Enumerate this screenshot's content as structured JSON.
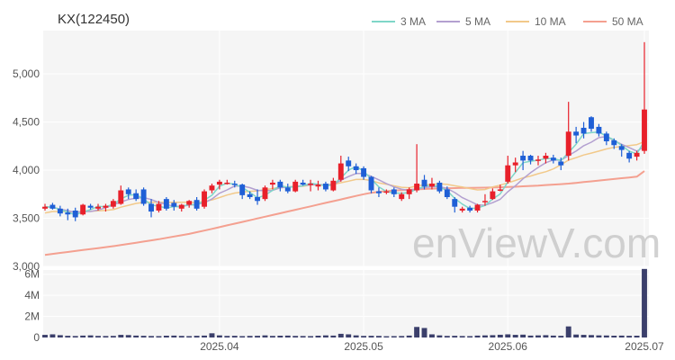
{
  "chart_data": {
    "type": "candlestick",
    "title": "KX(122450)",
    "watermark": "enViewV.com",
    "x_ticks": [
      "2025.04",
      "2025.05",
      "2025.06",
      "2025.07"
    ],
    "price_axis": {
      "ticks": [
        3000,
        3500,
        4000,
        4500,
        5000
      ],
      "tick_labels": [
        "3,000",
        "3,500",
        "4,000",
        "4,500",
        "5,000"
      ],
      "ylim": [
        3000,
        5450
      ]
    },
    "volume_axis": {
      "ticks": [
        0,
        2000000,
        4000000,
        6000000
      ],
      "tick_labels": [
        "0",
        "2M",
        "4M",
        "6M"
      ],
      "ylim": [
        0,
        6400000
      ]
    },
    "legend": [
      {
        "label": "3 MA",
        "color": "#7fd6c8"
      },
      {
        "label": "5 MA",
        "color": "#b3a0d0"
      },
      {
        "label": "10 MA",
        "color": "#f2c98a"
      },
      {
        "label": "50 MA",
        "color": "#f4a090"
      }
    ],
    "colors": {
      "up": "#e8202a",
      "down": "#1f5fd6",
      "volume": "#3b3f6b",
      "panel_bg": "#f5f5f5",
      "grid": "#ffffff"
    },
    "candles": [
      [
        3600,
        3650,
        3580,
        3620
      ],
      [
        3640,
        3660,
        3590,
        3600
      ],
      [
        3600,
        3630,
        3520,
        3550
      ],
      [
        3560,
        3600,
        3480,
        3540
      ],
      [
        3580,
        3610,
        3470,
        3510
      ],
      [
        3540,
        3650,
        3530,
        3640
      ],
      [
        3630,
        3650,
        3590,
        3610
      ],
      [
        3600,
        3650,
        3580,
        3620
      ],
      [
        3610,
        3650,
        3570,
        3630
      ],
      [
        3620,
        3700,
        3600,
        3680
      ],
      [
        3650,
        3840,
        3640,
        3790
      ],
      [
        3800,
        3820,
        3700,
        3750
      ],
      [
        3760,
        3800,
        3680,
        3700
      ],
      [
        3800,
        3820,
        3630,
        3650
      ],
      [
        3650,
        3700,
        3510,
        3570
      ],
      [
        3580,
        3680,
        3560,
        3650
      ],
      [
        3700,
        3720,
        3580,
        3600
      ],
      [
        3660,
        3690,
        3580,
        3620
      ],
      [
        3600,
        3650,
        3570,
        3640
      ],
      [
        3640,
        3690,
        3610,
        3680
      ],
      [
        3690,
        3720,
        3580,
        3600
      ],
      [
        3620,
        3800,
        3600,
        3780
      ],
      [
        3790,
        3860,
        3760,
        3840
      ],
      [
        3850,
        3900,
        3800,
        3880
      ],
      [
        3870,
        3900,
        3850,
        3870
      ],
      [
        3860,
        3890,
        3820,
        3850
      ],
      [
        3850,
        3860,
        3700,
        3740
      ],
      [
        3750,
        3780,
        3700,
        3720
      ],
      [
        3720,
        3800,
        3640,
        3680
      ],
      [
        3700,
        3840,
        3680,
        3820
      ],
      [
        3850,
        3900,
        3800,
        3870
      ],
      [
        3880,
        3900,
        3780,
        3820
      ],
      [
        3820,
        3860,
        3760,
        3780
      ],
      [
        3780,
        3900,
        3770,
        3880
      ],
      [
        3870,
        3900,
        3840,
        3850
      ],
      [
        3850,
        3900,
        3780,
        3860
      ],
      [
        3830,
        3890,
        3790,
        3850
      ],
      [
        3860,
        3880,
        3780,
        3800
      ],
      [
        3790,
        3920,
        3780,
        3890
      ],
      [
        3900,
        4150,
        3880,
        4070
      ],
      [
        4100,
        4140,
        3990,
        4040
      ],
      [
        4040,
        4070,
        3960,
        4000
      ],
      [
        4020,
        4040,
        3900,
        3930
      ],
      [
        3930,
        3940,
        3760,
        3790
      ],
      [
        3780,
        3820,
        3720,
        3760
      ],
      [
        3780,
        3800,
        3750,
        3780
      ],
      [
        3800,
        3820,
        3720,
        3750
      ],
      [
        3700,
        3770,
        3680,
        3750
      ],
      [
        3750,
        3820,
        3700,
        3800
      ],
      [
        3790,
        4270,
        3770,
        3860
      ],
      [
        3900,
        3950,
        3800,
        3830
      ],
      [
        3830,
        3920,
        3800,
        3860
      ],
      [
        3870,
        3890,
        3760,
        3780
      ],
      [
        3800,
        3830,
        3700,
        3720
      ],
      [
        3700,
        3720,
        3560,
        3620
      ],
      [
        3580,
        3620,
        3560,
        3600
      ],
      [
        3610,
        3630,
        3560,
        3580
      ],
      [
        3580,
        3650,
        3560,
        3640
      ],
      [
        3680,
        3750,
        3630,
        3680
      ],
      [
        3700,
        3810,
        3690,
        3780
      ],
      [
        3800,
        3850,
        3780,
        3800
      ],
      [
        3880,
        4150,
        3860,
        4050
      ],
      [
        4050,
        4130,
        3980,
        4080
      ],
      [
        4150,
        4200,
        4000,
        4100
      ],
      [
        4150,
        4160,
        4060,
        4100
      ],
      [
        4100,
        4150,
        4050,
        4110
      ],
      [
        4120,
        4180,
        4070,
        4150
      ],
      [
        4130,
        4160,
        4070,
        4100
      ],
      [
        4090,
        4130,
        4000,
        4050
      ],
      [
        4150,
        4710,
        4100,
        4400
      ],
      [
        4400,
        4450,
        4280,
        4360
      ],
      [
        4440,
        4500,
        4330,
        4380
      ],
      [
        4550,
        4560,
        4400,
        4430
      ],
      [
        4450,
        4480,
        4350,
        4380
      ],
      [
        4380,
        4400,
        4260,
        4300
      ],
      [
        4310,
        4330,
        4220,
        4260
      ],
      [
        4250,
        4270,
        4140,
        4210
      ],
      [
        4180,
        4200,
        4080,
        4120
      ],
      [
        4140,
        4200,
        4100,
        4180
      ],
      [
        4200,
        5330,
        4170,
        4630
      ]
    ],
    "volume": [
      250000,
      300000,
      220000,
      160000,
      140000,
      180000,
      200000,
      150000,
      140000,
      150000,
      250000,
      230000,
      180000,
      160000,
      140000,
      130000,
      170000,
      180000,
      150000,
      130000,
      160000,
      180000,
      400000,
      200000,
      150000,
      160000,
      130000,
      150000,
      160000,
      200000,
      150000,
      170000,
      180000,
      150000,
      140000,
      130000,
      170000,
      200000,
      180000,
      350000,
      300000,
      200000,
      150000,
      160000,
      150000,
      120000,
      130000,
      140000,
      180000,
      1000000,
      900000,
      300000,
      200000,
      150000,
      160000,
      140000,
      130000,
      180000,
      200000,
      220000,
      260000,
      300000,
      250000,
      270000,
      180000,
      200000,
      220000,
      180000,
      160000,
      1050000,
      280000,
      250000,
      230000,
      200000,
      190000,
      170000,
      180000,
      160000,
      170000,
      6500000
    ],
    "ma": {
      "ma3": [
        3620,
        3615,
        3590,
        3565,
        3535,
        3565,
        3590,
        3625,
        3620,
        3645,
        3700,
        3740,
        3745,
        3700,
        3640,
        3625,
        3607,
        3622,
        3620,
        3646,
        3633,
        3687,
        3740,
        3833,
        3865,
        3855,
        3820,
        3770,
        3713,
        3740,
        3790,
        3837,
        3823,
        3827,
        3837,
        3863,
        3853,
        3837,
        3847,
        3920,
        4000,
        4037,
        3990,
        3907,
        3827,
        3777,
        3763,
        3760,
        3767,
        3803,
        3830,
        3850,
        3823,
        3787,
        3707,
        3647,
        3600,
        3607,
        3633,
        3700,
        3753,
        3877,
        3977,
        4077,
        4093,
        4103,
        4120,
        4120,
        4100,
        4183,
        4270,
        4380,
        4390,
        4397,
        4353,
        4313,
        4257,
        4197,
        4170,
        4303
      ],
      "ma5": [
        3620,
        3615,
        3595,
        3580,
        3560,
        3570,
        3570,
        3585,
        3610,
        3640,
        3670,
        3695,
        3710,
        3715,
        3695,
        3665,
        3643,
        3625,
        3622,
        3638,
        3643,
        3660,
        3700,
        3760,
        3795,
        3835,
        3836,
        3818,
        3790,
        3786,
        3790,
        3816,
        3826,
        3830,
        3840,
        3850,
        3848,
        3847,
        3850,
        3895,
        3933,
        3965,
        3965,
        3936,
        3900,
        3860,
        3826,
        3802,
        3790,
        3803,
        3818,
        3830,
        3828,
        3810,
        3768,
        3714,
        3678,
        3640,
        3635,
        3662,
        3698,
        3776,
        3838,
        3910,
        3973,
        4029,
        4077,
        4106,
        4103,
        4152,
        4198,
        4254,
        4290,
        4338,
        4349,
        4307,
        4269,
        4235,
        4198,
        4243
      ],
      "ma10": [
        3555,
        3570,
        3570,
        3570,
        3565,
        3570,
        3572,
        3578,
        3583,
        3590,
        3615,
        3635,
        3655,
        3665,
        3667,
        3667,
        3665,
        3665,
        3666,
        3668,
        3661,
        3675,
        3690,
        3715,
        3742,
        3762,
        3772,
        3780,
        3785,
        3799,
        3809,
        3823,
        3828,
        3830,
        3832,
        3846,
        3847,
        3849,
        3852,
        3870,
        3886,
        3903,
        3904,
        3892,
        3868,
        3854,
        3837,
        3822,
        3817,
        3837,
        3846,
        3854,
        3858,
        3852,
        3838,
        3826,
        3809,
        3795,
        3799,
        3826,
        3844,
        3868,
        3893,
        3920,
        3939,
        3963,
        3984,
        4013,
        4057,
        4104,
        4130,
        4158,
        4177,
        4198,
        4220,
        4237,
        4246,
        4256,
        4265,
        4297
      ],
      "ma50": [
        3120,
        3130,
        3140,
        3150,
        3160,
        3170,
        3180,
        3190,
        3200,
        3210,
        3222,
        3234,
        3246,
        3258,
        3270,
        3282,
        3296,
        3310,
        3324,
        3338,
        3355,
        3372,
        3390,
        3408,
        3426,
        3444,
        3462,
        3480,
        3498,
        3516,
        3534,
        3552,
        3570,
        3588,
        3606,
        3624,
        3642,
        3660,
        3678,
        3696,
        3714,
        3732,
        3750,
        3765,
        3775,
        3782,
        3788,
        3792,
        3796,
        3800,
        3804,
        3808,
        3810,
        3812,
        3814,
        3815,
        3816,
        3817,
        3818,
        3820,
        3822,
        3825,
        3828,
        3832,
        3836,
        3840,
        3845,
        3850,
        3855,
        3860,
        3868,
        3876,
        3884,
        3892,
        3900,
        3908,
        3916,
        3924,
        3932,
        3990
      ]
    }
  }
}
